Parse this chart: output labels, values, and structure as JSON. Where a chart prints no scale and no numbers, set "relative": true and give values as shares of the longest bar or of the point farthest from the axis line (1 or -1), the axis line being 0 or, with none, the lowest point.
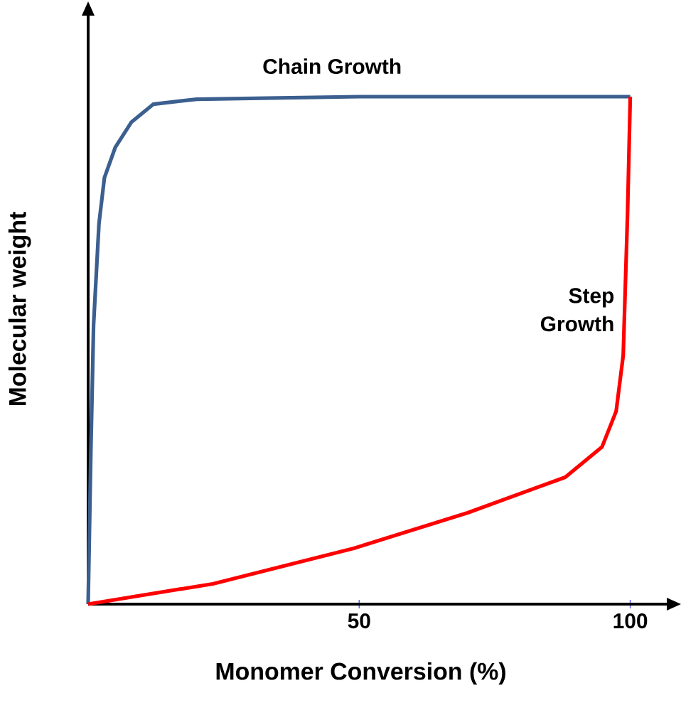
{
  "chart_data": {
    "type": "line",
    "xlabel": "Monomer Conversion (%)",
    "ylabel": "Molecular weight",
    "relative": true,
    "xlim": [
      0,
      107
    ],
    "xticks": [
      50,
      100
    ],
    "series": [
      {
        "name": "Chain Growth",
        "color": "#3b5f8f",
        "x": [
          0,
          0.5,
          1,
          2,
          3,
          5,
          8,
          12,
          20,
          50,
          100
        ],
        "values": [
          0,
          0.3,
          0.55,
          0.75,
          0.84,
          0.9,
          0.95,
          0.985,
          0.995,
          1,
          1
        ]
      },
      {
        "name": "Step Growth",
        "color": "#ff0000",
        "x": [
          0,
          23,
          49,
          70,
          88,
          94.8,
          97.4,
          98.7,
          99.5,
          100
        ],
        "values": [
          0,
          0.04,
          0.11,
          0.18,
          0.25,
          0.31,
          0.38,
          0.49,
          0.77,
          1
        ]
      }
    ]
  }
}
